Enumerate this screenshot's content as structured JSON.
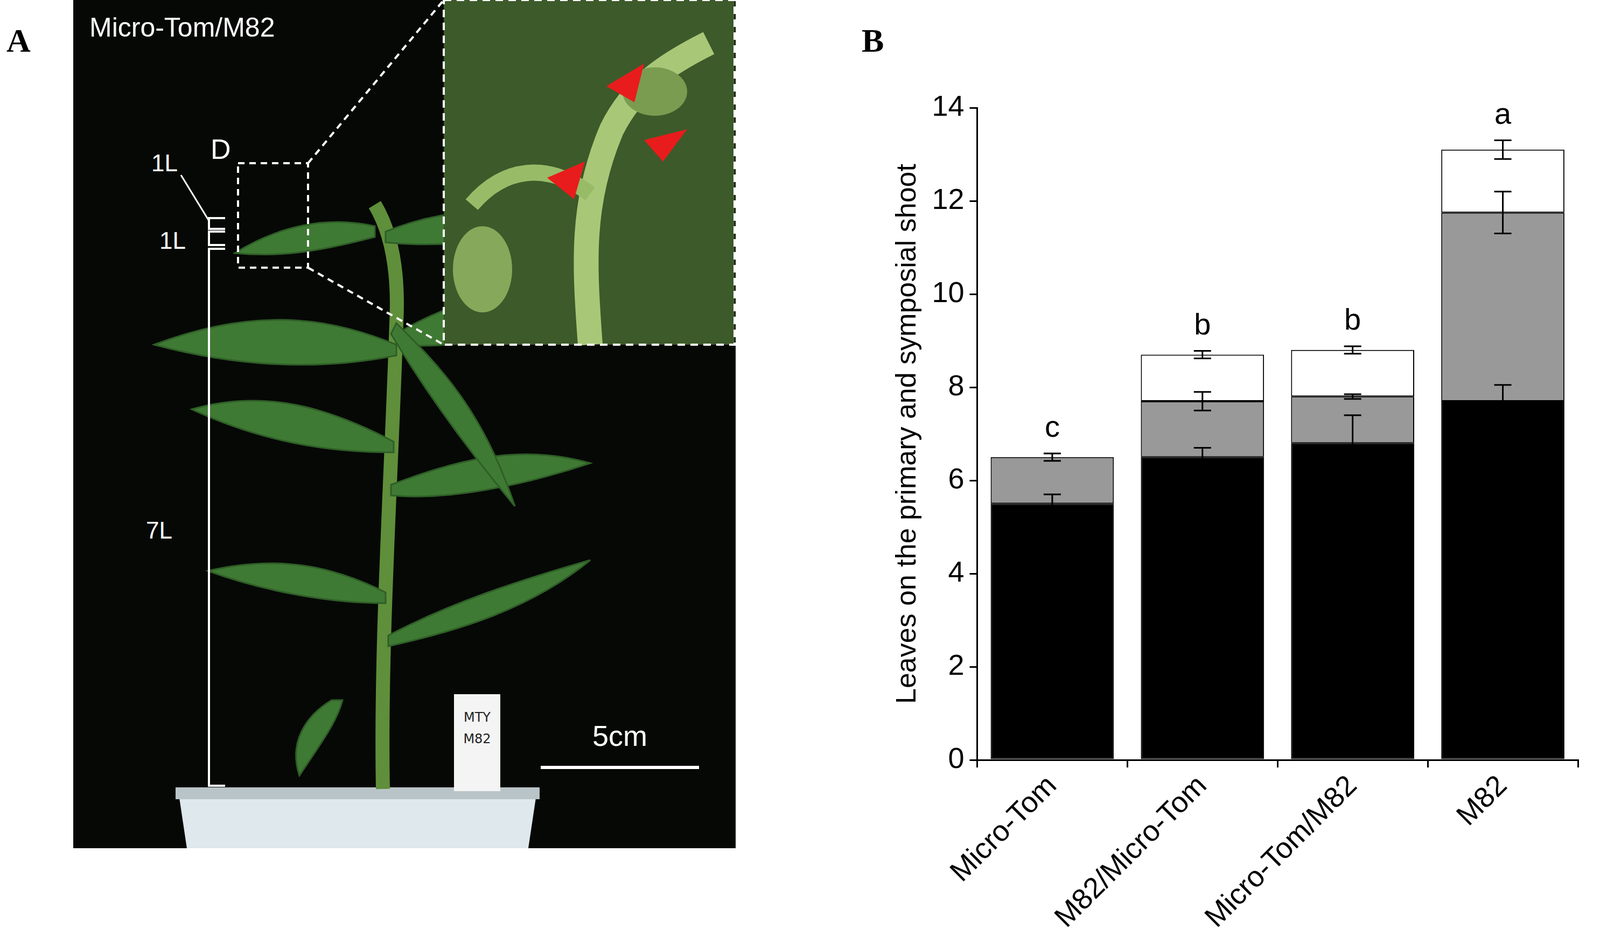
{
  "panel_letters": [
    "A",
    "B"
  ],
  "panel_a": {
    "title": "Micro-Tom/M82",
    "labels": [
      "1L",
      "1L",
      "7L"
    ],
    "inset_label": "D",
    "scale_bar": "5cm",
    "tag": [
      "MTY",
      "M82"
    ]
  },
  "chart_data": {
    "type": "bar",
    "stacked": true,
    "categories": [
      "Micro-Tom",
      "M82/Micro-Tom",
      "Micro-Tom/M82",
      "M82"
    ],
    "series": [
      {
        "color": "#000000",
        "values": [
          5.5,
          6.5,
          6.8,
          7.7
        ],
        "errors": [
          0.2,
          0.2,
          0.6,
          0.35
        ]
      },
      {
        "color": "#999999",
        "values": [
          1.0,
          1.2,
          1.0,
          4.05
        ],
        "errors": [
          0.08,
          0.2,
          0.05,
          0.45
        ]
      },
      {
        "color": "#ffffff",
        "values": [
          0,
          1.0,
          1.0,
          1.35
        ],
        "errors": [
          0,
          0.08,
          0.08,
          0.2
        ]
      }
    ],
    "y_label": "Leaves on the primary and symposial shoot",
    "ylim": [
      0,
      14
    ],
    "yticks": [
      0,
      2,
      4,
      6,
      8,
      10,
      12,
      14
    ],
    "grid": false,
    "annotations": [
      "c",
      "b",
      "b",
      "a"
    ]
  }
}
